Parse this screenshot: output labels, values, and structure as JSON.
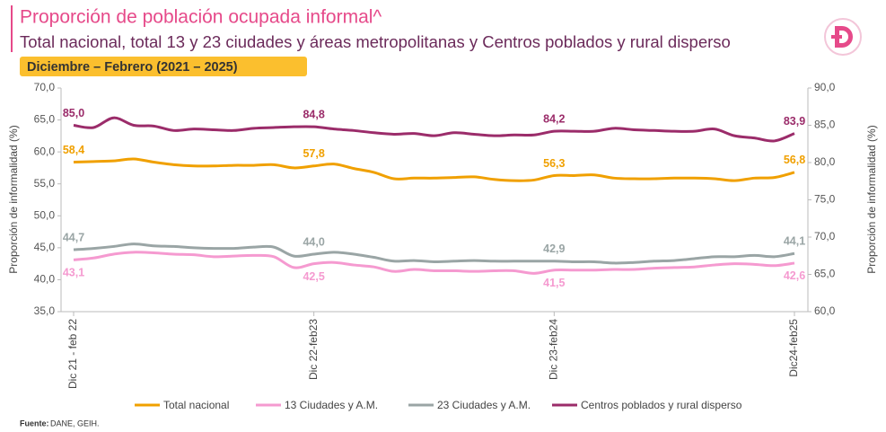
{
  "header": {
    "title": "Proporción de población ocupada informal^",
    "subtitle": "Total nacional, total 13 y 23 ciudades y áreas metropolitanas y Centros poblados y rural disperso",
    "period": "Diciembre – Febrero (2021 – 2025)"
  },
  "chart_data": {
    "type": "line",
    "y_label": "Proporción de informalidad (%)",
    "y2_label": "Proporción de informalidad (%)",
    "categories": [
      "Dic 21 - feb 22",
      null,
      null,
      null,
      null,
      null,
      null,
      null,
      null,
      null,
      null,
      null,
      "Dic 22-feb23",
      null,
      null,
      null,
      null,
      null,
      null,
      null,
      null,
      null,
      null,
      null,
      "Dic 23-feb24",
      null,
      null,
      null,
      null,
      null,
      null,
      null,
      null,
      null,
      null,
      null,
      "Dic24-feb25"
    ],
    "ylim": [
      35,
      70
    ],
    "yticks": [
      {
        "value": 35,
        "label": "35,0"
      },
      {
        "value": 40,
        "label": "40,0"
      },
      {
        "value": 45,
        "label": "45,0"
      },
      {
        "value": 50,
        "label": "50,0"
      },
      {
        "value": 55,
        "label": "55,0"
      },
      {
        "value": 60,
        "label": "60,0"
      },
      {
        "value": 65,
        "label": "65,0"
      },
      {
        "value": 70,
        "label": "70,0"
      }
    ],
    "y2lim": [
      60,
      90
    ],
    "y2ticks": [
      {
        "value": 60,
        "label": "60,0"
      },
      {
        "value": 65,
        "label": "65,0"
      },
      {
        "value": 70,
        "label": "70,0"
      },
      {
        "value": 75,
        "label": "75,0"
      },
      {
        "value": 80,
        "label": "80,0"
      },
      {
        "value": 85,
        "label": "85,0"
      },
      {
        "value": 90,
        "label": "90,0"
      }
    ],
    "series": [
      {
        "name": "Total nacional",
        "color": "#f0a000",
        "values": [
          58.4,
          58.5,
          58.6,
          58.9,
          58.4,
          58.0,
          57.8,
          57.8,
          57.9,
          57.9,
          58.0,
          57.5,
          57.8,
          58.1,
          57.4,
          56.8,
          55.8,
          55.9,
          55.9,
          56.0,
          56.1,
          55.7,
          55.5,
          55.6,
          56.3,
          56.3,
          56.4,
          55.9,
          55.8,
          55.8,
          55.9,
          55.9,
          55.8,
          55.5,
          55.9,
          56.0,
          56.8
        ],
        "value_labels": [
          "58,4",
          null,
          null,
          null,
          null,
          null,
          null,
          null,
          null,
          null,
          null,
          null,
          "57,8",
          null,
          null,
          null,
          null,
          null,
          null,
          null,
          null,
          null,
          null,
          null,
          "56,3",
          null,
          null,
          null,
          null,
          null,
          null,
          null,
          null,
          null,
          null,
          null,
          "56,8"
        ]
      },
      {
        "name": "13 Ciudades y A.M.",
        "color": "#f59ad0",
        "values": [
          43.1,
          43.4,
          44.0,
          44.3,
          44.2,
          44.0,
          43.9,
          43.6,
          43.7,
          43.8,
          43.6,
          41.9,
          42.5,
          42.7,
          42.3,
          42.0,
          41.3,
          41.6,
          41.4,
          41.4,
          41.3,
          41.4,
          41.4,
          41.0,
          41.5,
          41.5,
          41.5,
          41.6,
          41.6,
          41.8,
          41.9,
          42.0,
          42.3,
          42.5,
          42.4,
          42.2,
          42.6
        ],
        "value_labels": [
          "43,1",
          null,
          null,
          null,
          null,
          null,
          null,
          null,
          null,
          null,
          null,
          null,
          "42,5",
          null,
          null,
          null,
          null,
          null,
          null,
          null,
          null,
          null,
          null,
          null,
          "41,5",
          null,
          null,
          null,
          null,
          null,
          null,
          null,
          null,
          null,
          null,
          null,
          "42,6"
        ]
      },
      {
        "name": "23 Ciudades y A.M.",
        "color": "#9aa5a5",
        "values": [
          44.7,
          44.9,
          45.2,
          45.6,
          45.3,
          45.2,
          45.0,
          44.9,
          44.9,
          45.1,
          45.1,
          43.7,
          44.0,
          44.3,
          44.0,
          43.5,
          42.9,
          43.0,
          42.8,
          42.9,
          43.0,
          42.9,
          42.9,
          42.9,
          42.9,
          42.8,
          42.8,
          42.6,
          42.7,
          42.9,
          43.0,
          43.3,
          43.6,
          43.6,
          43.8,
          43.6,
          44.1
        ],
        "value_labels": [
          "44,7",
          null,
          null,
          null,
          null,
          null,
          null,
          null,
          null,
          null,
          null,
          null,
          "44,0",
          null,
          null,
          null,
          null,
          null,
          null,
          null,
          null,
          null,
          null,
          null,
          "42,9",
          null,
          null,
          null,
          null,
          null,
          null,
          null,
          null,
          null,
          null,
          null,
          "44,1"
        ]
      },
      {
        "name": "Centros poblados y rural disperso",
        "color": "#9b2c6a",
        "axis": "y2",
        "values": [
          85.0,
          84.7,
          86.0,
          85.0,
          84.9,
          84.3,
          84.5,
          84.4,
          84.3,
          84.6,
          84.7,
          84.8,
          84.8,
          84.5,
          84.3,
          84.0,
          83.8,
          83.9,
          83.6,
          84.0,
          83.8,
          83.6,
          83.7,
          83.7,
          84.2,
          84.2,
          84.2,
          84.6,
          84.4,
          84.3,
          84.2,
          84.2,
          84.5,
          83.6,
          83.3,
          82.9,
          83.9
        ],
        "value_labels": [
          "85,0",
          null,
          null,
          null,
          null,
          null,
          null,
          null,
          null,
          null,
          null,
          null,
          "84,8",
          null,
          null,
          null,
          null,
          null,
          null,
          null,
          null,
          null,
          null,
          null,
          "84,2",
          null,
          null,
          null,
          null,
          null,
          null,
          null,
          null,
          null,
          null,
          null,
          "83,9"
        ]
      }
    ]
  },
  "footer": {
    "source_label": "Fuente:",
    "source": "DANE, GEIH."
  }
}
